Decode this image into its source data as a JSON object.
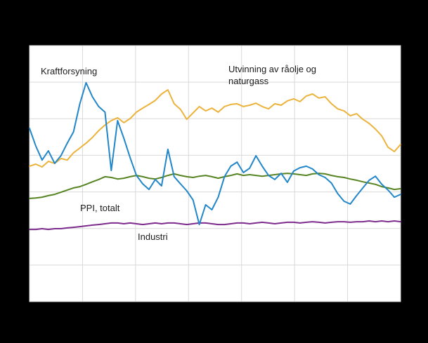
{
  "figure": {
    "background": "#000000",
    "plot_background": "#ffffff",
    "grid_color": "#d9d9d9"
  },
  "chart_data": {
    "type": "line",
    "title": "",
    "xlabel": "",
    "ylabel": "",
    "x_axis_note": "time axis, tick labels not visible in screenshot",
    "y_axis_note": "relative index scale, tick labels not visible in screenshot",
    "ylim": [
      0,
      100
    ],
    "grid": true,
    "grid_divisions_x": 7,
    "grid_divisions_y": 7,
    "legend_position": "inline annotations next to lines",
    "series": [
      {
        "id": "kraftforsyning",
        "name": "Kraftforsyning",
        "color": "#2287c9",
        "values": [
          67.7,
          60.8,
          55.3,
          58.9,
          54.0,
          57.0,
          61.9,
          66.3,
          77.3,
          85.5,
          80.0,
          76.2,
          74.0,
          51.2,
          70.7,
          63.8,
          56.2,
          49.3,
          46.0,
          43.8,
          47.7,
          45.2,
          59.5,
          48.8,
          46.0,
          43.3,
          39.7,
          30.1,
          37.8,
          35.9,
          40.8,
          48.8,
          52.9,
          54.5,
          50.4,
          52.1,
          57.0,
          52.9,
          49.3,
          47.7,
          50.1,
          46.6,
          51.0,
          52.3,
          52.9,
          51.8,
          49.6,
          48.5,
          46.3,
          42.2,
          39.2,
          38.1,
          41.4,
          44.4,
          47.4,
          49.0,
          45.8,
          43.6,
          40.8,
          41.9
        ]
      },
      {
        "id": "utvinning-raolje-naturgass",
        "name": "Utvinning av råolje og naturgass",
        "color": "#ecb33c",
        "values": [
          52.9,
          53.7,
          52.6,
          54.8,
          54.0,
          55.9,
          55.3,
          58.1,
          60.0,
          61.9,
          64.1,
          66.8,
          69.0,
          70.7,
          71.8,
          69.9,
          71.5,
          74.0,
          75.6,
          77.0,
          78.6,
          81.1,
          82.7,
          77.3,
          75.1,
          71.2,
          73.7,
          76.2,
          74.5,
          75.6,
          74.0,
          76.2,
          77.0,
          77.3,
          76.2,
          76.7,
          77.5,
          76.2,
          75.3,
          77.3,
          76.7,
          78.4,
          79.2,
          78.1,
          80.3,
          81.1,
          79.5,
          80.0,
          77.3,
          75.3,
          74.5,
          72.6,
          73.4,
          71.2,
          69.6,
          67.4,
          64.7,
          60.3,
          58.6,
          61.4
        ]
      },
      {
        "id": "ppi-totalt",
        "name": "PPI, totalt",
        "color": "#568422",
        "values": [
          40.3,
          40.5,
          40.8,
          41.4,
          41.9,
          42.7,
          43.6,
          44.4,
          44.9,
          45.8,
          46.8,
          47.7,
          48.8,
          48.5,
          47.9,
          48.2,
          48.8,
          49.3,
          48.8,
          48.2,
          47.9,
          48.5,
          49.3,
          49.9,
          49.3,
          48.8,
          48.5,
          49.0,
          49.3,
          48.8,
          48.2,
          48.8,
          49.3,
          49.9,
          49.3,
          49.6,
          49.3,
          49.0,
          49.3,
          49.6,
          49.9,
          50.1,
          49.9,
          49.6,
          49.3,
          49.9,
          50.1,
          49.9,
          49.3,
          48.8,
          48.5,
          47.9,
          47.4,
          46.8,
          46.3,
          45.8,
          44.9,
          44.4,
          43.8,
          44.1
        ]
      },
      {
        "id": "industri",
        "name": "Industri",
        "color": "#7d2c8d",
        "values": [
          28.2,
          28.2,
          28.5,
          28.2,
          28.5,
          28.5,
          28.8,
          29.0,
          29.3,
          29.6,
          29.9,
          30.1,
          30.4,
          30.7,
          30.7,
          30.4,
          30.7,
          30.4,
          30.1,
          30.4,
          30.7,
          30.4,
          30.7,
          30.7,
          30.4,
          30.1,
          30.4,
          30.7,
          30.7,
          30.4,
          30.1,
          30.1,
          30.4,
          30.7,
          30.7,
          30.4,
          30.7,
          31.0,
          30.7,
          30.4,
          30.7,
          31.0,
          31.0,
          30.7,
          31.0,
          31.2,
          31.0,
          30.7,
          31.0,
          31.2,
          31.2,
          31.0,
          31.2,
          31.2,
          31.5,
          31.2,
          31.5,
          31.2,
          31.5,
          31.2
        ]
      }
    ]
  }
}
